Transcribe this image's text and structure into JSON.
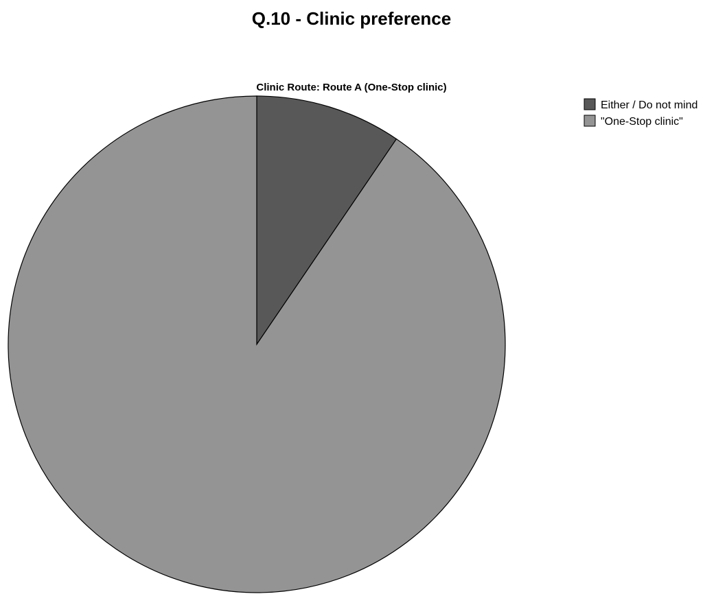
{
  "chart_data": {
    "type": "pie",
    "title": "Q.10 - Clinic preference",
    "subtitle": "Clinic Route: Route A (One-Stop clinic)",
    "categories": [
      "Either / Do not mind",
      "\"One-Stop clinic\""
    ],
    "values": [
      9.5,
      90.5
    ],
    "colors": [
      "#585858",
      "#949494"
    ],
    "legend": {
      "placement": "top-right",
      "entries": [
        "Either / Do not mind",
        "\"One-Stop clinic\""
      ]
    },
    "start_angle": "12 o'clock",
    "direction": "clockwise"
  }
}
